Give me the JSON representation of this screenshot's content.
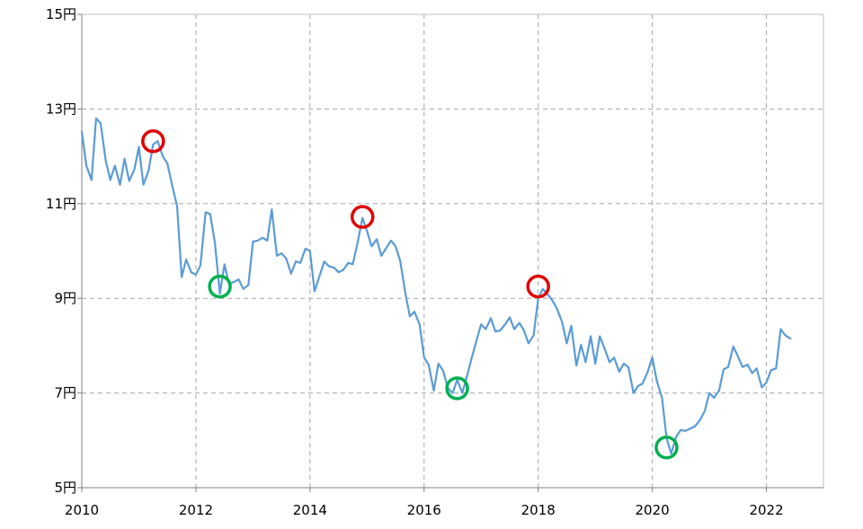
{
  "chart_data": {
    "type": "line",
    "title": "",
    "xlabel": "",
    "ylabel": "",
    "xlim": [
      2010.0,
      2023.0
    ],
    "ylim": [
      5,
      15
    ],
    "grid": true,
    "x_ticks": [
      {
        "value": 2010,
        "label": "2010"
      },
      {
        "value": 2012,
        "label": "2012"
      },
      {
        "value": 2014,
        "label": "2014"
      },
      {
        "value": 2016,
        "label": "2016"
      },
      {
        "value": 2018,
        "label": "2018"
      },
      {
        "value": 2020,
        "label": "2020"
      },
      {
        "value": 2022,
        "label": "2022"
      }
    ],
    "y_ticks": [
      {
        "value": 5,
        "label": "5円"
      },
      {
        "value": 7,
        "label": "7円"
      },
      {
        "value": 9,
        "label": "9円"
      },
      {
        "value": 11,
        "label": "11円"
      },
      {
        "value": 13,
        "label": "13円"
      },
      {
        "value": 15,
        "label": "15円"
      }
    ],
    "line_color": "#5B9BD5",
    "series": [
      {
        "name": "",
        "points": [
          [
            2010.0,
            12.52
          ],
          [
            2010.08,
            11.8
          ],
          [
            2010.17,
            11.5
          ],
          [
            2010.25,
            12.8
          ],
          [
            2010.33,
            12.7
          ],
          [
            2010.42,
            11.9
          ],
          [
            2010.5,
            11.5
          ],
          [
            2010.58,
            11.8
          ],
          [
            2010.67,
            11.4
          ],
          [
            2010.75,
            11.95
          ],
          [
            2010.83,
            11.48
          ],
          [
            2010.92,
            11.72
          ],
          [
            2011.0,
            12.2
          ],
          [
            2011.08,
            11.4
          ],
          [
            2011.17,
            11.7
          ],
          [
            2011.25,
            12.25
          ],
          [
            2011.33,
            12.32
          ],
          [
            2011.42,
            12.0
          ],
          [
            2011.5,
            11.85
          ],
          [
            2011.58,
            11.4
          ],
          [
            2011.67,
            10.95
          ],
          [
            2011.75,
            9.45
          ],
          [
            2011.83,
            9.82
          ],
          [
            2011.92,
            9.55
          ],
          [
            2012.0,
            9.5
          ],
          [
            2012.08,
            9.7
          ],
          [
            2012.17,
            10.82
          ],
          [
            2012.25,
            10.78
          ],
          [
            2012.33,
            10.2
          ],
          [
            2012.42,
            9.1
          ],
          [
            2012.5,
            9.72
          ],
          [
            2012.58,
            9.3
          ],
          [
            2012.67,
            9.35
          ],
          [
            2012.75,
            9.4
          ],
          [
            2012.83,
            9.2
          ],
          [
            2012.92,
            9.28
          ],
          [
            2013.0,
            10.2
          ],
          [
            2013.08,
            10.22
          ],
          [
            2013.17,
            10.28
          ],
          [
            2013.25,
            10.22
          ],
          [
            2013.33,
            10.88
          ],
          [
            2013.42,
            9.9
          ],
          [
            2013.5,
            9.95
          ],
          [
            2013.58,
            9.85
          ],
          [
            2013.67,
            9.52
          ],
          [
            2013.75,
            9.78
          ],
          [
            2013.83,
            9.75
          ],
          [
            2013.92,
            10.05
          ],
          [
            2014.0,
            10.0
          ],
          [
            2014.08,
            9.15
          ],
          [
            2014.17,
            9.48
          ],
          [
            2014.25,
            9.78
          ],
          [
            2014.33,
            9.68
          ],
          [
            2014.42,
            9.65
          ],
          [
            2014.5,
            9.55
          ],
          [
            2014.58,
            9.6
          ],
          [
            2014.67,
            9.75
          ],
          [
            2014.75,
            9.72
          ],
          [
            2014.83,
            10.15
          ],
          [
            2014.92,
            10.7
          ],
          [
            2015.0,
            10.42
          ],
          [
            2015.08,
            10.1
          ],
          [
            2015.17,
            10.25
          ],
          [
            2015.25,
            9.9
          ],
          [
            2015.33,
            10.05
          ],
          [
            2015.42,
            10.22
          ],
          [
            2015.5,
            10.1
          ],
          [
            2015.58,
            9.8
          ],
          [
            2015.67,
            9.12
          ],
          [
            2015.75,
            8.62
          ],
          [
            2015.83,
            8.72
          ],
          [
            2015.92,
            8.45
          ],
          [
            2016.0,
            7.75
          ],
          [
            2016.08,
            7.6
          ],
          [
            2016.17,
            7.05
          ],
          [
            2016.25,
            7.62
          ],
          [
            2016.33,
            7.48
          ],
          [
            2016.42,
            7.1
          ],
          [
            2016.5,
            7.0
          ],
          [
            2016.58,
            7.28
          ],
          [
            2016.67,
            7.0
          ],
          [
            2016.75,
            7.35
          ],
          [
            2016.83,
            7.72
          ],
          [
            2016.92,
            8.12
          ],
          [
            2017.0,
            8.45
          ],
          [
            2017.08,
            8.35
          ],
          [
            2017.17,
            8.58
          ],
          [
            2017.25,
            8.3
          ],
          [
            2017.33,
            8.32
          ],
          [
            2017.42,
            8.45
          ],
          [
            2017.5,
            8.6
          ],
          [
            2017.58,
            8.35
          ],
          [
            2017.67,
            8.48
          ],
          [
            2017.75,
            8.32
          ],
          [
            2017.83,
            8.05
          ],
          [
            2017.92,
            8.22
          ],
          [
            2018.0,
            9.0
          ],
          [
            2018.08,
            9.2
          ],
          [
            2018.17,
            9.08
          ],
          [
            2018.25,
            8.95
          ],
          [
            2018.33,
            8.78
          ],
          [
            2018.42,
            8.5
          ],
          [
            2018.5,
            8.05
          ],
          [
            2018.58,
            8.42
          ],
          [
            2018.67,
            7.58
          ],
          [
            2018.75,
            8.02
          ],
          [
            2018.83,
            7.65
          ],
          [
            2018.92,
            8.2
          ],
          [
            2019.0,
            7.62
          ],
          [
            2019.08,
            8.2
          ],
          [
            2019.17,
            7.92
          ],
          [
            2019.25,
            7.65
          ],
          [
            2019.33,
            7.75
          ],
          [
            2019.42,
            7.45
          ],
          [
            2019.5,
            7.62
          ],
          [
            2019.58,
            7.55
          ],
          [
            2019.67,
            7.0
          ],
          [
            2019.75,
            7.15
          ],
          [
            2019.83,
            7.2
          ],
          [
            2019.92,
            7.45
          ],
          [
            2020.0,
            7.75
          ],
          [
            2020.08,
            7.25
          ],
          [
            2020.17,
            6.9
          ],
          [
            2020.25,
            6.05
          ],
          [
            2020.33,
            5.72
          ],
          [
            2020.42,
            6.08
          ],
          [
            2020.5,
            6.22
          ],
          [
            2020.58,
            6.2
          ],
          [
            2020.67,
            6.25
          ],
          [
            2020.75,
            6.3
          ],
          [
            2020.83,
            6.42
          ],
          [
            2020.92,
            6.62
          ],
          [
            2021.0,
            7.0
          ],
          [
            2021.08,
            6.9
          ],
          [
            2021.17,
            7.05
          ],
          [
            2021.25,
            7.5
          ],
          [
            2021.33,
            7.55
          ],
          [
            2021.42,
            7.98
          ],
          [
            2021.5,
            7.78
          ],
          [
            2021.58,
            7.55
          ],
          [
            2021.67,
            7.6
          ],
          [
            2021.75,
            7.42
          ],
          [
            2021.83,
            7.52
          ],
          [
            2021.92,
            7.12
          ],
          [
            2022.0,
            7.22
          ],
          [
            2022.08,
            7.48
          ],
          [
            2022.17,
            7.52
          ],
          [
            2022.25,
            8.35
          ],
          [
            2022.33,
            8.22
          ],
          [
            2022.42,
            8.15
          ]
        ]
      }
    ],
    "markers": [
      {
        "type": "peak",
        "x": 2011.25,
        "y": 12.32,
        "color": "#E00000"
      },
      {
        "type": "trough",
        "x": 2012.42,
        "y": 9.25,
        "color": "#00B050"
      },
      {
        "type": "peak",
        "x": 2014.92,
        "y": 10.72,
        "color": "#E00000"
      },
      {
        "type": "trough",
        "x": 2016.58,
        "y": 7.1,
        "color": "#00B050"
      },
      {
        "type": "peak",
        "x": 2018.0,
        "y": 9.25,
        "color": "#E00000"
      },
      {
        "type": "trough",
        "x": 2020.25,
        "y": 5.85,
        "color": "#00B050"
      }
    ]
  }
}
